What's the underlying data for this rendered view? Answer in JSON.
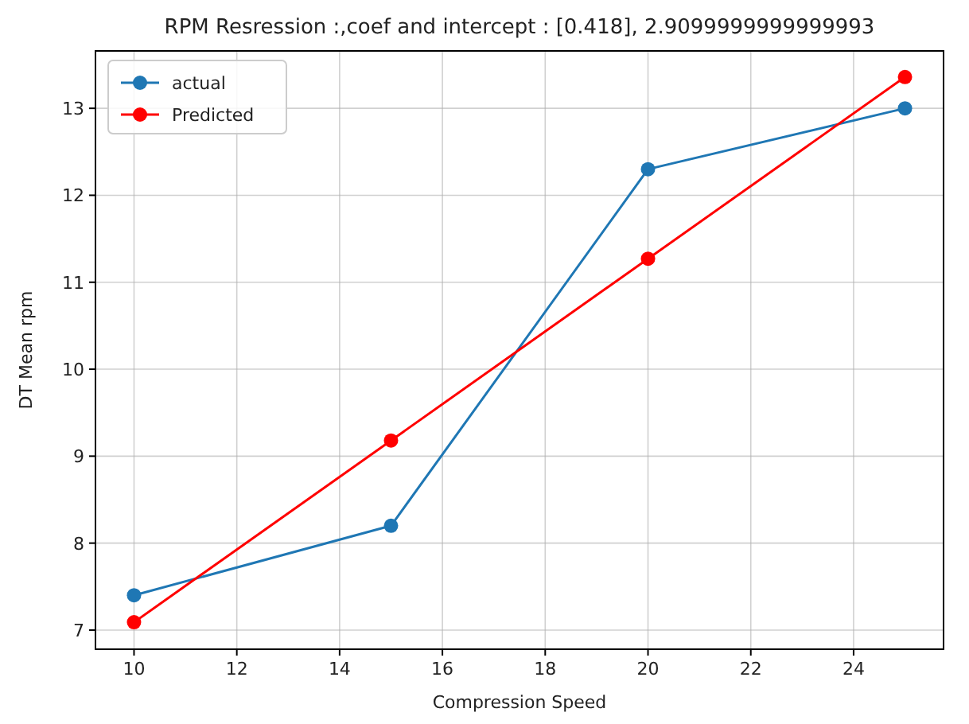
{
  "chart_data": {
    "type": "line",
    "title": "RPM Resression  :,coef and intercept : [0.418], 2.9099999999999993",
    "xlabel": "Compression Speed",
    "ylabel": "DT Mean rpm",
    "x": [
      10,
      15,
      20,
      25
    ],
    "series": [
      {
        "name": "actual",
        "color": "#1f77b4",
        "values": [
          7.4,
          8.2,
          12.3,
          13.0
        ]
      },
      {
        "name": "Predicted",
        "color": "#ff0000",
        "values": [
          7.09,
          9.18,
          11.27,
          13.36
        ]
      }
    ],
    "xlim": [
      9.25,
      25.75
    ],
    "xticks": [
      10,
      12,
      14,
      16,
      18,
      20,
      22,
      24
    ],
    "ylim": [
      6.78,
      13.66
    ],
    "yticks": [
      7,
      8,
      9,
      10,
      11,
      12,
      13
    ],
    "grid": true,
    "legend": "top left",
    "marker": "circle",
    "line_style": "solid"
  }
}
